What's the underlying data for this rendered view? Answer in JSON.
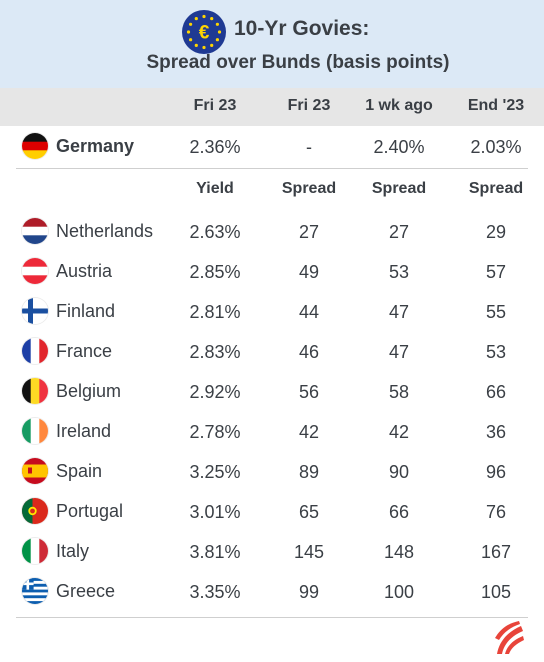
{
  "header": {
    "title": "10-Yr Govies:",
    "subtitle": "Spread over Bunds (basis points)",
    "icon": "eu-flag-euro-icon"
  },
  "columns": [
    "Fri 23",
    "Fri 23",
    "1 wk ago",
    "End '23"
  ],
  "reference": {
    "country": "Germany",
    "flag": "germany-flag-icon",
    "values": [
      "2.36%",
      "-",
      "2.40%",
      "2.03%"
    ]
  },
  "subheaders": [
    "Yield",
    "Spread",
    "Spread",
    "Spread"
  ],
  "rows": [
    {
      "country": "Netherlands",
      "flag": "netherlands-flag-icon",
      "values": [
        "2.63%",
        "27",
        "27",
        "29"
      ]
    },
    {
      "country": "Austria",
      "flag": "austria-flag-icon",
      "values": [
        "2.85%",
        "49",
        "53",
        "57"
      ]
    },
    {
      "country": "Finland",
      "flag": "finland-flag-icon",
      "values": [
        "2.81%",
        "44",
        "47",
        "55"
      ]
    },
    {
      "country": "France",
      "flag": "france-flag-icon",
      "values": [
        "2.83%",
        "46",
        "47",
        "53"
      ]
    },
    {
      "country": "Belgium",
      "flag": "belgium-flag-icon",
      "values": [
        "2.92%",
        "56",
        "58",
        "66"
      ]
    },
    {
      "country": "Ireland",
      "flag": "ireland-flag-icon",
      "values": [
        "2.78%",
        "42",
        "42",
        "36"
      ]
    },
    {
      "country": "Spain",
      "flag": "spain-flag-icon",
      "values": [
        "3.25%",
        "89",
        "90",
        "96"
      ]
    },
    {
      "country": "Portugal",
      "flag": "portugal-flag-icon",
      "values": [
        "3.01%",
        "65",
        "66",
        "76"
      ]
    },
    {
      "country": "Italy",
      "flag": "italy-flag-icon",
      "values": [
        "3.81%",
        "145",
        "148",
        "167"
      ]
    },
    {
      "country": "Greece",
      "flag": "greece-flag-icon",
      "values": [
        "3.35%",
        "99",
        "100",
        "105"
      ]
    }
  ],
  "colors": {
    "header_bg": "#dce9f6",
    "column_header_bg": "#e6e6e6",
    "text": "#3a3f45",
    "logo_red": "#e8443a"
  },
  "footer": {
    "logo": "brand-logo-icon"
  }
}
